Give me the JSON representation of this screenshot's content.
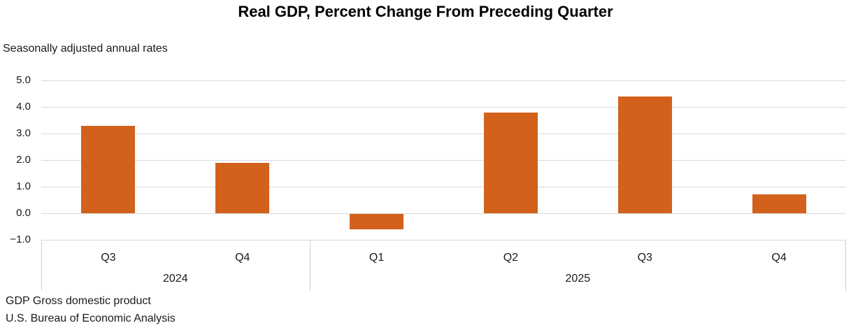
{
  "title": "Real GDP, Percent Change From Preceding Quarter",
  "subtitle": "Seasonally adjusted annual rates",
  "footer": {
    "line1": "GDP Gross domestic product",
    "line2": "U.S. Bureau of Economic Analysis"
  },
  "colors": {
    "bar": "#D2611B",
    "gridline": "#D9D9D9",
    "axis_divider": "#CFCFCF",
    "text": "#1a1a1a"
  },
  "chart_data": {
    "type": "bar",
    "title": "Real GDP, Percent Change From Preceding Quarter",
    "subtitle": "Seasonally adjusted annual rates",
    "categories": [
      "Q3",
      "Q4",
      "Q1",
      "Q2",
      "Q3",
      "Q4"
    ],
    "year_groups": [
      {
        "label": "2024",
        "count": 2
      },
      {
        "label": "2025",
        "count": 4
      }
    ],
    "values": [
      3.3,
      1.9,
      -0.6,
      3.8,
      4.4,
      0.7
    ],
    "ylabel": "",
    "xlabel": "",
    "ylim": [
      -1.0,
      5.0
    ],
    "ytick_step": 1.0,
    "ytick_labels": [
      "5.0",
      "4.0",
      "3.0",
      "2.0",
      "1.0",
      "0.0",
      "−1.0"
    ],
    "grid": true,
    "legend": "none",
    "bar_color": "#D2611B",
    "source": "U.S. Bureau of Economic Analysis"
  }
}
